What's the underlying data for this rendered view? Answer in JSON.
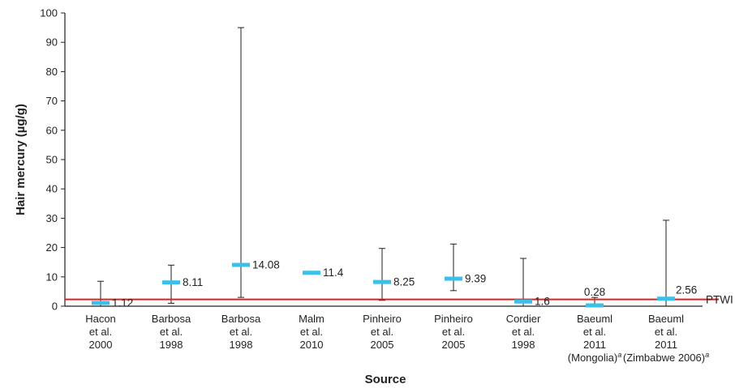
{
  "chart_data": {
    "type": "scatter",
    "ylabel": "Hair mercury (µg/g)",
    "xlabel": "Source",
    "ylim": [
      0,
      100
    ],
    "yticks": [
      "0",
      "10",
      "20",
      "30",
      "40",
      "50",
      "60",
      "70",
      "80",
      "90",
      "100"
    ],
    "grid": false,
    "reference_line": {
      "label": "PTWI",
      "value": 2.3,
      "color": "#e0201f"
    },
    "marker_color": "#3cc0ea",
    "categories": [
      {
        "lines": [
          "Hacon",
          "et al.",
          "2000"
        ],
        "value": 1.12,
        "label": "1.12",
        "low": 0,
        "high": 8.5
      },
      {
        "lines": [
          "Barbosa",
          "et al.",
          "1998"
        ],
        "value": 8.11,
        "label": "8.11",
        "low": 1,
        "high": 14
      },
      {
        "lines": [
          "Barbosa",
          "et al.",
          "1998"
        ],
        "value": 14.08,
        "label": "14.08",
        "low": 3,
        "high": 95
      },
      {
        "lines": [
          "Malm",
          "et al.",
          "2010"
        ],
        "value": 11.4,
        "label": "11.4",
        "low": null,
        "high": null
      },
      {
        "lines": [
          "Pinheiro",
          "et al.",
          "2005"
        ],
        "value": 8.25,
        "label": "8.25",
        "low": 2,
        "high": 19.7
      },
      {
        "lines": [
          "Pinheiro",
          "et al.",
          "2005"
        ],
        "value": 9.39,
        "label": "9.39",
        "low": 5.3,
        "high": 21.2
      },
      {
        "lines": [
          "Cordier",
          "et al.",
          "1998"
        ],
        "value": 1.6,
        "label": "1.6",
        "low": 0,
        "high": 16.3
      },
      {
        "lines": [
          "Baeuml",
          "et al.",
          "2011",
          "(Mongolia)"
        ],
        "superscript": "a",
        "value": 0.28,
        "label": "0.28",
        "low": 0,
        "high": 3
      },
      {
        "lines": [
          "Baeuml",
          "et al.",
          "2011",
          "(Zimbabwe 2006)"
        ],
        "superscript": "a",
        "value": 2.56,
        "label": "2.56",
        "low": 0,
        "high": 29.3
      }
    ]
  }
}
